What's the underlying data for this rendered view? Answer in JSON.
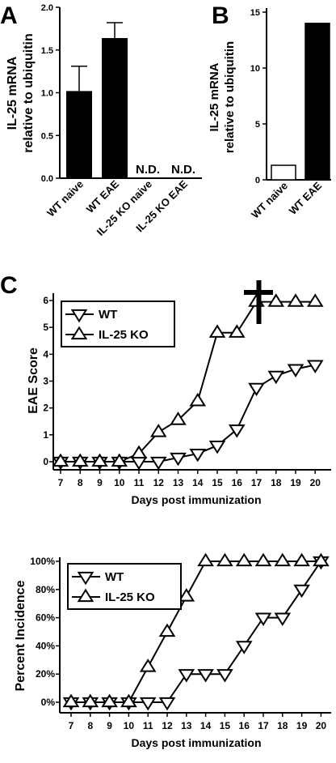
{
  "panel_labels": [
    "A",
    "B",
    "C"
  ],
  "chart_data": [
    {
      "type": "bar",
      "panel": "A",
      "ylabel": "IL-25 mRNA relative to ubiquitin",
      "ylabel_lines": [
        "IL-25 mRNA",
        "relative to ubiquitin"
      ],
      "ylim": [
        0,
        2.0
      ],
      "yticks": [
        "0.0",
        "0.5",
        "1.0",
        "1.5",
        "2.0"
      ],
      "categories": [
        "WT naive",
        "WT EAE",
        "IL-25 KO naive",
        "IL-25 KO EAE"
      ],
      "values": [
        1.02,
        1.64,
        null,
        null
      ],
      "errors": [
        0.29,
        0.18,
        null,
        null
      ],
      "annotations": [
        "N.D.",
        "N.D."
      ],
      "bar_color": "#000000"
    },
    {
      "type": "bar",
      "panel": "B",
      "ylabel": "IL-25 mRNA relative to ubiquitin",
      "ylabel_lines": [
        "IL-25 mRNA",
        "relative to ubiquitin"
      ],
      "ylim": [
        0,
        15
      ],
      "yticks": [
        "0",
        "5",
        "10",
        "15"
      ],
      "categories": [
        "WT naive",
        "WT EAE"
      ],
      "values": [
        1.3,
        14.0
      ],
      "bar_fills": [
        "#ffffff",
        "#000000"
      ]
    },
    {
      "type": "line",
      "panel": "C",
      "ylabel": "EAE Score",
      "xlabel": "Days post immunization",
      "x": [
        7,
        8,
        9,
        10,
        11,
        12,
        13,
        14,
        15,
        16,
        17,
        18,
        19,
        20
      ],
      "ylim": [
        0,
        6
      ],
      "yticks": [
        "0",
        "1",
        "2",
        "3",
        "4",
        "5",
        "6"
      ],
      "legend_position": "top-left",
      "annotation": "cross marker above day 15.5",
      "series": [
        {
          "name": "WT",
          "marker": "triangle-down",
          "values": [
            0,
            0,
            0,
            0,
            0,
            0,
            0.15,
            0.3,
            0.6,
            1.2,
            2.75,
            3.2,
            3.45,
            3.6
          ]
        },
        {
          "name": "IL-25 KO",
          "marker": "triangle-up",
          "values": [
            0,
            0,
            0,
            0,
            0.3,
            1.1,
            1.55,
            2.25,
            4.8,
            4.8,
            5.95,
            5.95,
            5.95,
            5.95
          ]
        }
      ]
    },
    {
      "type": "line",
      "panel": "C-bottom",
      "ylabel": "Percent Incidence",
      "xlabel": "Days post immunization",
      "x": [
        7,
        8,
        9,
        10,
        11,
        12,
        13,
        14,
        15,
        16,
        17,
        18,
        19,
        20
      ],
      "ylim": [
        0,
        100
      ],
      "yticks": [
        "0%",
        "20%",
        "40%",
        "60%",
        "80%",
        "100%"
      ],
      "legend_position": "top-left",
      "series": [
        {
          "name": "WT",
          "marker": "triangle-down",
          "values": [
            0,
            0,
            0,
            0,
            0,
            0,
            20,
            20,
            20,
            40,
            60,
            60,
            80,
            100
          ]
        },
        {
          "name": "IL-25 KO",
          "marker": "triangle-up",
          "values": [
            0,
            0,
            0,
            0,
            25,
            50,
            75,
            100,
            100,
            100,
            100,
            100,
            100,
            100
          ]
        }
      ]
    }
  ]
}
